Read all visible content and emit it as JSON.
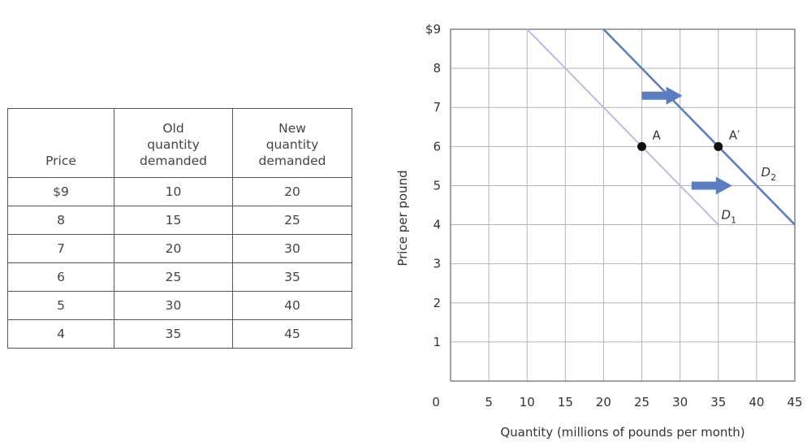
{
  "table": {
    "headers": [
      [
        "Price"
      ],
      [
        "Old",
        "quantity",
        "demanded"
      ],
      [
        "New",
        "quantity",
        "demanded"
      ]
    ],
    "rows": [
      [
        "$9",
        "10",
        "20"
      ],
      [
        "8",
        "15",
        "25"
      ],
      [
        "7",
        "20",
        "30"
      ],
      [
        "6",
        "25",
        "35"
      ],
      [
        "5",
        "30",
        "40"
      ],
      [
        "4",
        "35",
        "45"
      ]
    ]
  },
  "chart_data": {
    "type": "line",
    "xlabel": "Quantity (millions of pounds per month)",
    "ylabel": "Price per pound",
    "xlim": [
      0,
      45
    ],
    "ylim": [
      0,
      9
    ],
    "x_ticks": [
      "0",
      "5",
      "10",
      "15",
      "20",
      "25",
      "30",
      "35",
      "40",
      "45"
    ],
    "y_ticks": [
      "",
      "1",
      "2",
      "3",
      "4",
      "5",
      "6",
      "7",
      "8",
      "$9"
    ],
    "grid": true,
    "series": [
      {
        "name": "D1",
        "x": [
          10,
          15,
          20,
          25,
          30,
          35
        ],
        "y": [
          9,
          8,
          7,
          6,
          5,
          4
        ],
        "color": "#b8bedf"
      },
      {
        "name": "D2",
        "x": [
          20,
          25,
          30,
          35,
          40,
          45
        ],
        "y": [
          9,
          8,
          7,
          6,
          5,
          4
        ],
        "color": "#5b7ec2"
      }
    ],
    "points": [
      {
        "label": "A",
        "x": 25,
        "y": 6
      },
      {
        "label": "A′",
        "x": 35,
        "y": 6
      }
    ],
    "arrows": [
      {
        "x": 25,
        "y": 7.3,
        "direction": "right",
        "color": "#5b7ec2"
      },
      {
        "x": 31.5,
        "y": 5.0,
        "direction": "right",
        "color": "#5b7ec2"
      }
    ],
    "curve_labels": [
      {
        "text": "D",
        "sub": "1",
        "x": 35.4,
        "y": 4.1
      },
      {
        "text": "D",
        "sub": "2",
        "x": 40.6,
        "y": 5.2
      }
    ]
  }
}
